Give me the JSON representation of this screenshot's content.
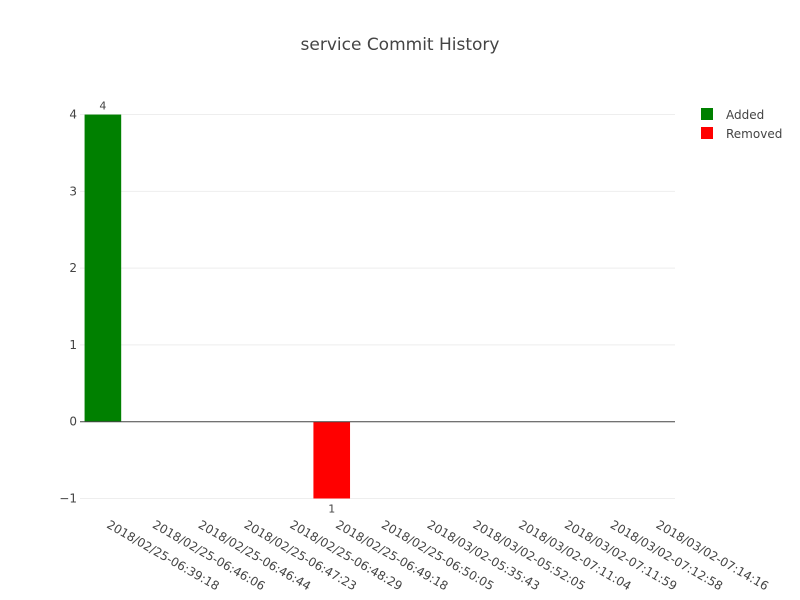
{
  "chart_data": {
    "type": "bar",
    "title": "service Commit History",
    "xlabel": "",
    "ylabel": "",
    "ylim": [
      -1.15,
      4.45
    ],
    "y_ticks": [
      -1,
      0,
      1,
      2,
      3,
      4
    ],
    "y_tick_labels": [
      "−1",
      "0",
      "1",
      "2",
      "3",
      "4"
    ],
    "grid": true,
    "legend_position": "top-right",
    "categories": [
      "2018/02/25-06:39:18",
      "2018/02/25-06:46:06",
      "2018/02/25-06:46:44",
      "2018/02/25-06:47:23",
      "2018/02/25-06:48:29",
      "2018/02/25-06:49:18",
      "2018/02/25-06:50:05",
      "2018/03/02-05:35:43",
      "2018/03/02-05:52:05",
      "2018/03/02-07:11:04",
      "2018/03/02-07:11:59",
      "2018/03/02-07:12:58",
      "2018/03/02-07:14:16"
    ],
    "series": [
      {
        "name": "Added",
        "color": "#008000",
        "values": [
          4,
          0,
          0,
          0,
          0,
          0,
          0,
          0,
          0,
          0,
          0,
          0,
          0
        ],
        "data_labels": [
          "4",
          "",
          "",
          "",
          "",
          "",
          "",
          "",
          "",
          "",
          "",
          "",
          ""
        ]
      },
      {
        "name": "Removed",
        "color": "#ff0000",
        "values": [
          0,
          0,
          0,
          0,
          0,
          -1,
          0,
          0,
          0,
          0,
          0,
          0,
          0
        ],
        "data_labels": [
          "",
          "",
          "",
          "",
          "",
          "1",
          "",
          "",
          "",
          "",
          "",
          "",
          ""
        ]
      }
    ]
  }
}
